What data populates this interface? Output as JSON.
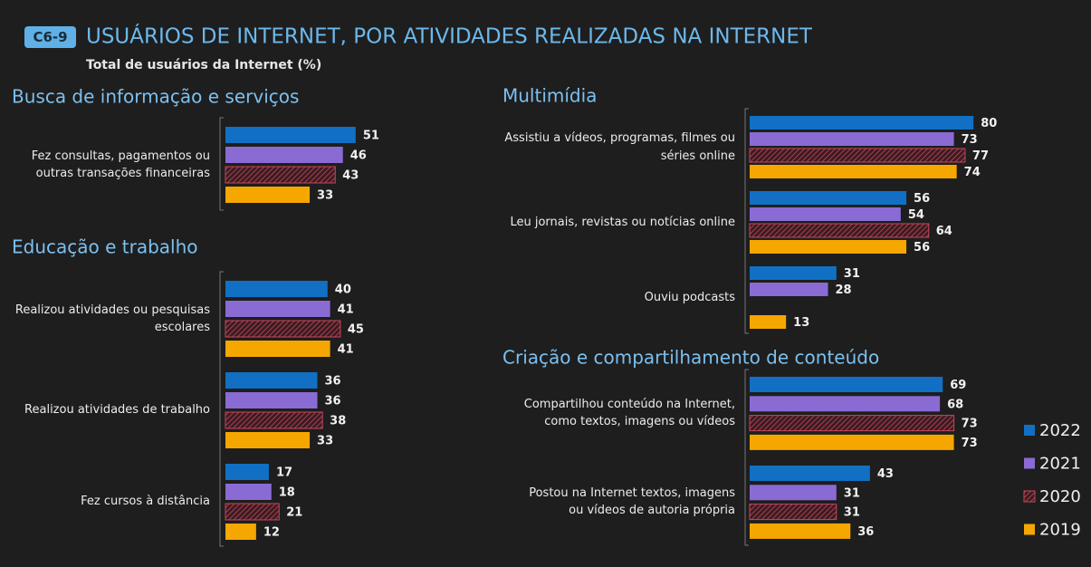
{
  "header": {
    "badge": "C6-9",
    "title": "USUÁRIOS DE INTERNET, POR ATIVIDADES REALIZADAS NA INTERNET",
    "subtitle": "Total de usuários da Internet (%)"
  },
  "chart_data": [
    {
      "type": "bar",
      "orientation": "horizontal",
      "title": "Busca de informação e serviços",
      "xlim": [
        0,
        100
      ],
      "categories": [
        "Fez consultas, pagamentos ou\noutras transações financeiras"
      ],
      "series": [
        {
          "name": "2022",
          "color": "#1170c4",
          "values": [
            51
          ]
        },
        {
          "name": "2021",
          "color": "#8a6bd4",
          "values": [
            46
          ]
        },
        {
          "name": "2020",
          "color": "#c8475a",
          "pattern": "hatch",
          "values": [
            43
          ]
        },
        {
          "name": "2019",
          "color": "#f5a700",
          "values": [
            33
          ]
        }
      ]
    },
    {
      "type": "bar",
      "orientation": "horizontal",
      "title": "Educação e trabalho",
      "xlim": [
        0,
        100
      ],
      "categories": [
        "Realizou atividades ou pesquisas\nescolares",
        "Realizou atividades de trabalho",
        "Fez cursos à distância"
      ],
      "series": [
        {
          "name": "2022",
          "color": "#1170c4",
          "values": [
            40,
            36,
            17
          ]
        },
        {
          "name": "2021",
          "color": "#8a6bd4",
          "values": [
            41,
            36,
            18
          ]
        },
        {
          "name": "2020",
          "color": "#c8475a",
          "pattern": "hatch",
          "values": [
            45,
            38,
            21
          ]
        },
        {
          "name": "2019",
          "color": "#f5a700",
          "values": [
            41,
            33,
            12
          ]
        }
      ]
    },
    {
      "type": "bar",
      "orientation": "horizontal",
      "title": "Multimídia",
      "xlim": [
        0,
        100
      ],
      "categories": [
        "Assistiu a vídeos, programas, filmes ou\nséries online",
        "Leu jornais, revistas ou notícias online",
        "Ouviu podcasts"
      ],
      "series": [
        {
          "name": "2022",
          "color": "#1170c4",
          "values": [
            80,
            56,
            31
          ]
        },
        {
          "name": "2021",
          "color": "#8a6bd4",
          "values": [
            73,
            54,
            28
          ]
        },
        {
          "name": "2020",
          "color": "#c8475a",
          "pattern": "hatch",
          "values": [
            77,
            64,
            null
          ]
        },
        {
          "name": "2019",
          "color": "#f5a700",
          "values": [
            74,
            56,
            13
          ]
        }
      ]
    },
    {
      "type": "bar",
      "orientation": "horizontal",
      "title": "Criação e compartilhamento de conteúdo",
      "xlim": [
        0,
        100
      ],
      "categories": [
        "Compartilhou conteúdo na Internet,\ncomo textos, imagens ou vídeos",
        "Postou na Internet textos, imagens\nou vídeos de autoria própria"
      ],
      "series": [
        {
          "name": "2022",
          "color": "#1170c4",
          "values": [
            69,
            43
          ]
        },
        {
          "name": "2021",
          "color": "#8a6bd4",
          "values": [
            68,
            31
          ]
        },
        {
          "name": "2020",
          "color": "#c8475a",
          "pattern": "hatch",
          "values": [
            73,
            31
          ]
        },
        {
          "name": "2019",
          "color": "#f5a700",
          "values": [
            73,
            36
          ]
        }
      ],
      "legend": "right"
    }
  ]
}
